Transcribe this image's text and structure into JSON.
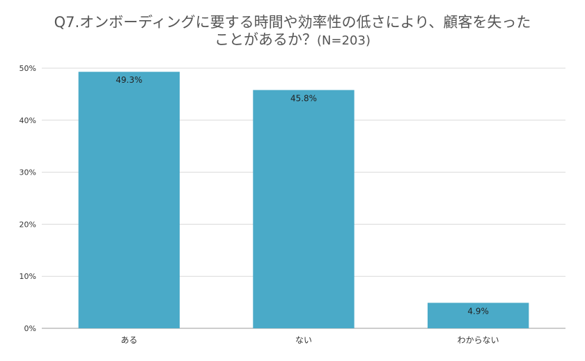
{
  "chart_data": {
    "type": "bar",
    "title_line1": "Q7.オンボーディングに要する時間や効率性の低さにより、顧客を失った",
    "title_line2": "ことがあるか？",
    "title_suffix": "(N=203)",
    "categories": [
      "ある",
      "ない",
      "わからない"
    ],
    "values": [
      49.3,
      45.8,
      4.9
    ],
    "data_labels": [
      "49.3%",
      "45.8%",
      "4.9%"
    ],
    "ylim": [
      0,
      50
    ],
    "yticks": [
      0,
      10,
      20,
      30,
      40,
      50
    ],
    "ytick_labels": [
      "0%",
      "10%",
      "20%",
      "30%",
      "40%",
      "50%"
    ],
    "grid": true,
    "bar_color": "#4aaac8",
    "grid_color": "#d9d9d9"
  }
}
